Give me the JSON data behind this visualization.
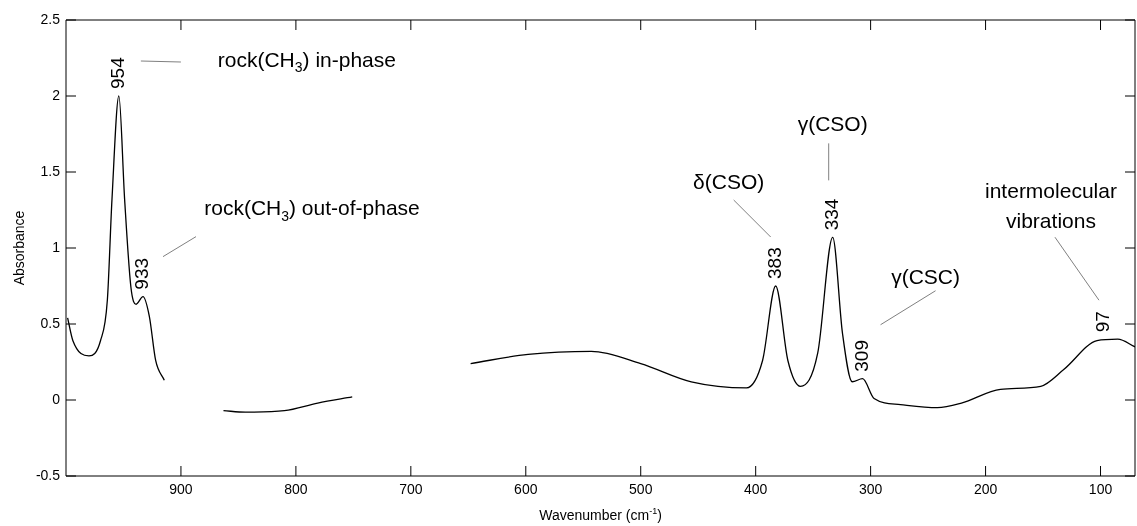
{
  "chart_data": {
    "type": "line",
    "xlabel": "Wavenumber (cm$^{-1}$)",
    "ylabel": "Absorbance",
    "x": [
      998.6,
      994,
      980,
      970,
      964,
      960,
      954,
      949,
      943.5,
      939,
      933,
      927.5,
      922,
      914.5,
      890,
      863,
      844,
      810,
      781,
      751,
      700,
      648,
      598,
      543,
      500,
      456,
      408,
      394,
      382.6,
      372,
      361,
      346,
      333,
      324.5,
      316,
      307,
      297,
      274,
      242,
      221,
      187,
      152,
      132,
      103,
      85,
      70
    ],
    "values": [
      0.54,
      0.39,
      0.29,
      0.39,
      0.66,
      1.32,
      2.0,
      1.32,
      0.74,
      0.63,
      0.68,
      0.55,
      0.26,
      0.13,
      null,
      -0.07,
      -0.08,
      -0.07,
      -0.02,
      0.02,
      null,
      0.24,
      0.3,
      0.32,
      0.24,
      0.12,
      0.08,
      0.26,
      0.75,
      0.26,
      0.09,
      0.31,
      1.07,
      0.44,
      0.12,
      0.14,
      0.01,
      -0.03,
      -0.05,
      -0.02,
      0.07,
      0.09,
      0.2,
      0.39,
      0.4,
      0.35
    ],
    "color": "#000000",
    "marker": "none",
    "line_style": "solid",
    "grid": false,
    "legend": false,
    "xlim": [
      1000,
      70
    ],
    "xticks": [
      900,
      800,
      700,
      600,
      500,
      400,
      300,
      200,
      100
    ],
    "ylim": [
      -0.5,
      2.5
    ],
    "yticks": [
      -0.5,
      0,
      0.5,
      1,
      1.5,
      2,
      2.5
    ],
    "annotations": [
      {
        "text": "954",
        "x": 954,
        "y": 2.0
      },
      "rock(CH$_{3}$) in-phase",
      {
        "text": "933",
        "x": 933,
        "y": 0.68
      },
      "rock(CH$_{3}$) out-of-phase",
      {
        "text": "383",
        "x": 382.6,
        "y": 0.75
      },
      "δ(CSO)",
      {
        "text": "334",
        "x": 333,
        "y": 1.07
      },
      "γ(CSO)",
      {
        "text": "309",
        "x": 307,
        "y": 0.14
      },
      "γ(CSC)",
      {
        "text": "97",
        "x": 97,
        "y": 0.4
      },
      "intermolecular\nvibrations"
    ]
  }
}
